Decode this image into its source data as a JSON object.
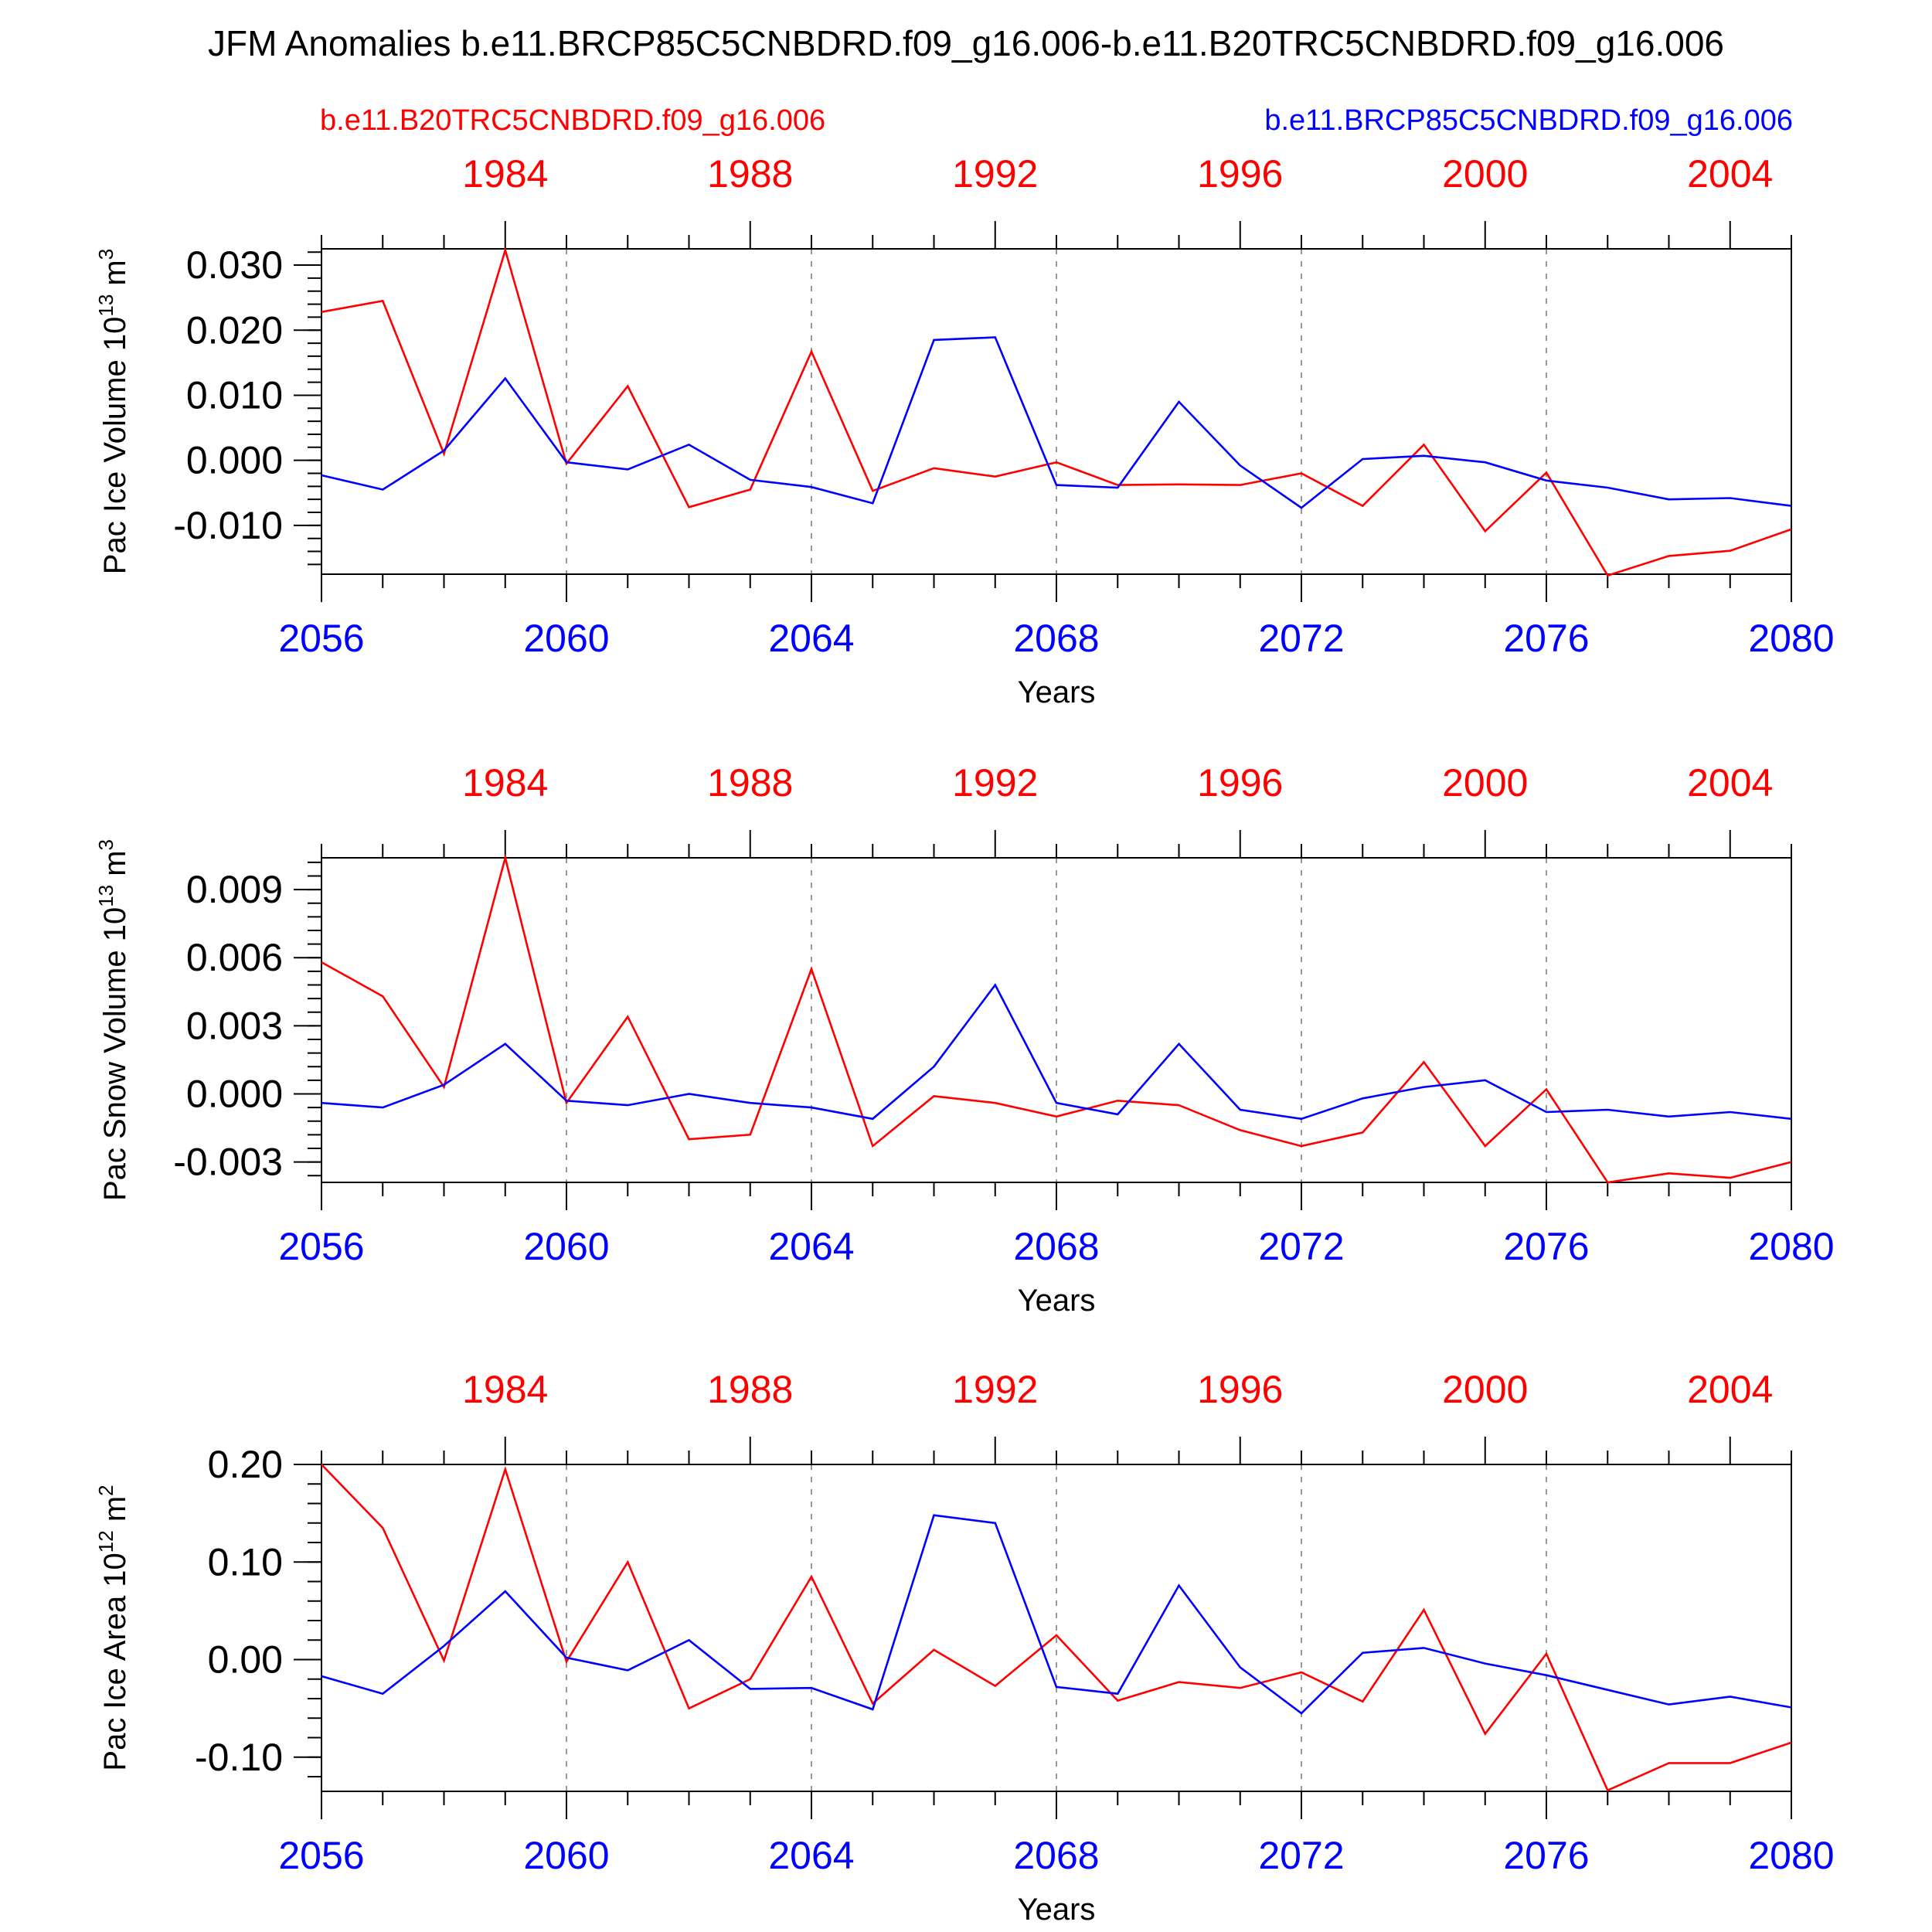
{
  "title": "JFM Anomalies b.e11.BRCP85C5CNBDRD.f09_g16.006-b.e11.B20TRC5CNBDRD.f09_g16.006",
  "legend": {
    "red_label": "b.e11.B20TRC5CNBDRD.f09_g16.006",
    "blue_label": "b.e11.BRCP85C5CNBDRD.f09_g16.006"
  },
  "colors": {
    "red": "#ff0000",
    "blue": "#0000ff",
    "axis": "#000000",
    "grid": "#999999"
  },
  "chart_data": [
    {
      "type": "line",
      "ylabel": "Pac Ice Volume 10",
      "ylabel_exp": "13",
      "ylabel_unit": " m",
      "ylabel_unit_exp": "3",
      "xlabel": "Years",
      "ylim": [
        -0.0175,
        0.0325
      ],
      "yticks": [
        -0.01,
        0.0,
        0.01,
        0.02,
        0.03
      ],
      "ytick_labels": [
        "-0.010",
        "0.000",
        "0.010",
        "0.020",
        "0.030"
      ],
      "yminor_step": 0.002,
      "bottom_xticks": [
        "2056",
        "2060",
        "2064",
        "2068",
        "2072",
        "2076",
        "2080"
      ],
      "top_xticks": [
        "1984",
        "1988",
        "1992",
        "1996",
        "2000",
        "2004"
      ],
      "x": [
        2056,
        2057,
        2058,
        2059,
        2060,
        2061,
        2062,
        2063,
        2064,
        2065,
        2066,
        2067,
        2068,
        2069,
        2070,
        2071,
        2072,
        2073,
        2074,
        2075,
        2076,
        2077,
        2078,
        2079,
        2080
      ],
      "series": [
        {
          "name": "b.e11.B20TRC5CNBDRD.f09_g16.006",
          "color": "red",
          "values": [
            0.0228,
            0.0245,
            0.001,
            0.0323,
            -0.0005,
            0.0114,
            -0.0072,
            -0.0045,
            0.0167,
            -0.0047,
            -0.0012,
            -0.0025,
            -0.0003,
            -0.0038,
            -0.0037,
            -0.0038,
            -0.002,
            -0.007,
            0.0024,
            -0.0109,
            -0.0019,
            -0.0177,
            -0.0147,
            -0.0139,
            -0.0106
          ]
        },
        {
          "name": "b.e11.BRCP85C5CNBDRD.f09_g16.006",
          "color": "blue",
          "values": [
            -0.0023,
            -0.0045,
            0.0015,
            0.0126,
            -0.0003,
            -0.0014,
            0.0024,
            -0.003,
            -0.0041,
            -0.0066,
            0.0185,
            0.0189,
            -0.0038,
            -0.0042,
            0.009,
            -0.0008,
            -0.0073,
            0.0002,
            0.0007,
            -0.0003,
            -0.0031,
            -0.0042,
            -0.006,
            -0.0058,
            -0.007
          ]
        }
      ]
    },
    {
      "type": "line",
      "ylabel": "Pac Snow Volume 10",
      "ylabel_exp": "13",
      "ylabel_unit": " m",
      "ylabel_unit_exp": "3",
      "xlabel": "Years",
      "ylim": [
        -0.0039,
        0.0104
      ],
      "yticks": [
        -0.003,
        0.0,
        0.003,
        0.006,
        0.009
      ],
      "ytick_labels": [
        "-0.003",
        "0.000",
        "0.003",
        "0.006",
        "0.009"
      ],
      "yminor_step": 0.0006,
      "bottom_xticks": [
        "2056",
        "2060",
        "2064",
        "2068",
        "2072",
        "2076",
        "2080"
      ],
      "top_xticks": [
        "1984",
        "1988",
        "1992",
        "1996",
        "2000",
        "2004"
      ],
      "x": [
        2056,
        2057,
        2058,
        2059,
        2060,
        2061,
        2062,
        2063,
        2064,
        2065,
        2066,
        2067,
        2068,
        2069,
        2070,
        2071,
        2072,
        2073,
        2074,
        2075,
        2076,
        2077,
        2078,
        2079,
        2080
      ],
      "series": [
        {
          "name": "b.e11.B20TRC5CNBDRD.f09_g16.006",
          "color": "red",
          "values": [
            0.0058,
            0.0043,
            0.0003,
            0.0104,
            -0.0004,
            0.0034,
            -0.002,
            -0.0018,
            0.0055,
            -0.0023,
            -0.0001,
            -0.0004,
            -0.001,
            -0.0003,
            -0.0005,
            -0.0016,
            -0.0023,
            -0.0017,
            0.0014,
            -0.0023,
            0.0002,
            -0.0039,
            -0.0035,
            -0.0037,
            -0.003
          ]
        },
        {
          "name": "b.e11.BRCP85C5CNBDRD.f09_g16.006",
          "color": "blue",
          "values": [
            -0.0004,
            -0.0006,
            0.0004,
            0.0022,
            -0.0003,
            -0.0005,
            0.0,
            -0.0004,
            -0.0006,
            -0.0011,
            0.0012,
            0.0048,
            -0.0004,
            -0.0009,
            0.0022,
            -0.0007,
            -0.0011,
            -0.0002,
            0.0003,
            0.0006,
            -0.0008,
            -0.0007,
            -0.001,
            -0.0008,
            -0.0011
          ]
        }
      ]
    },
    {
      "type": "line",
      "ylabel": "Pac Ice Area 10",
      "ylabel_exp": "12",
      "ylabel_unit": " m",
      "ylabel_unit_exp": "2",
      "xlabel": "Years",
      "ylim": [
        -0.135,
        0.2
      ],
      "yticks": [
        -0.1,
        0.0,
        0.1,
        0.2
      ],
      "ytick_labels": [
        "-0.10",
        "0.00",
        "0.10",
        "0.20"
      ],
      "yminor_step": 0.02,
      "bottom_xticks": [
        "2056",
        "2060",
        "2064",
        "2068",
        "2072",
        "2076",
        "2080"
      ],
      "top_xticks": [
        "1984",
        "1988",
        "1992",
        "1996",
        "2000",
        "2004"
      ],
      "x": [
        2056,
        2057,
        2058,
        2059,
        2060,
        2061,
        2062,
        2063,
        2064,
        2065,
        2066,
        2067,
        2068,
        2069,
        2070,
        2071,
        2072,
        2073,
        2074,
        2075,
        2076,
        2077,
        2078,
        2079,
        2080
      ],
      "series": [
        {
          "name": "b.e11.B20TRC5CNBDRD.f09_g16.006",
          "color": "red",
          "values": [
            0.2,
            0.135,
            -0.001,
            0.195,
            -0.002,
            0.1,
            -0.05,
            -0.02,
            0.085,
            -0.045,
            0.01,
            -0.027,
            0.025,
            -0.042,
            -0.023,
            -0.029,
            -0.013,
            -0.043,
            0.051,
            -0.076,
            0.006,
            -0.134,
            -0.106,
            -0.106,
            -0.085
          ]
        },
        {
          "name": "b.e11.BRCP85C5CNBDRD.f09_g16.006",
          "color": "blue",
          "values": [
            -0.017,
            -0.035,
            0.014,
            0.07,
            0.002,
            -0.011,
            0.02,
            -0.03,
            -0.029,
            -0.051,
            0.148,
            0.14,
            -0.028,
            -0.035,
            0.076,
            -0.008,
            -0.055,
            0.007,
            0.012,
            -0.004,
            -0.016,
            -0.031,
            -0.046,
            -0.038,
            -0.049
          ]
        }
      ]
    }
  ]
}
